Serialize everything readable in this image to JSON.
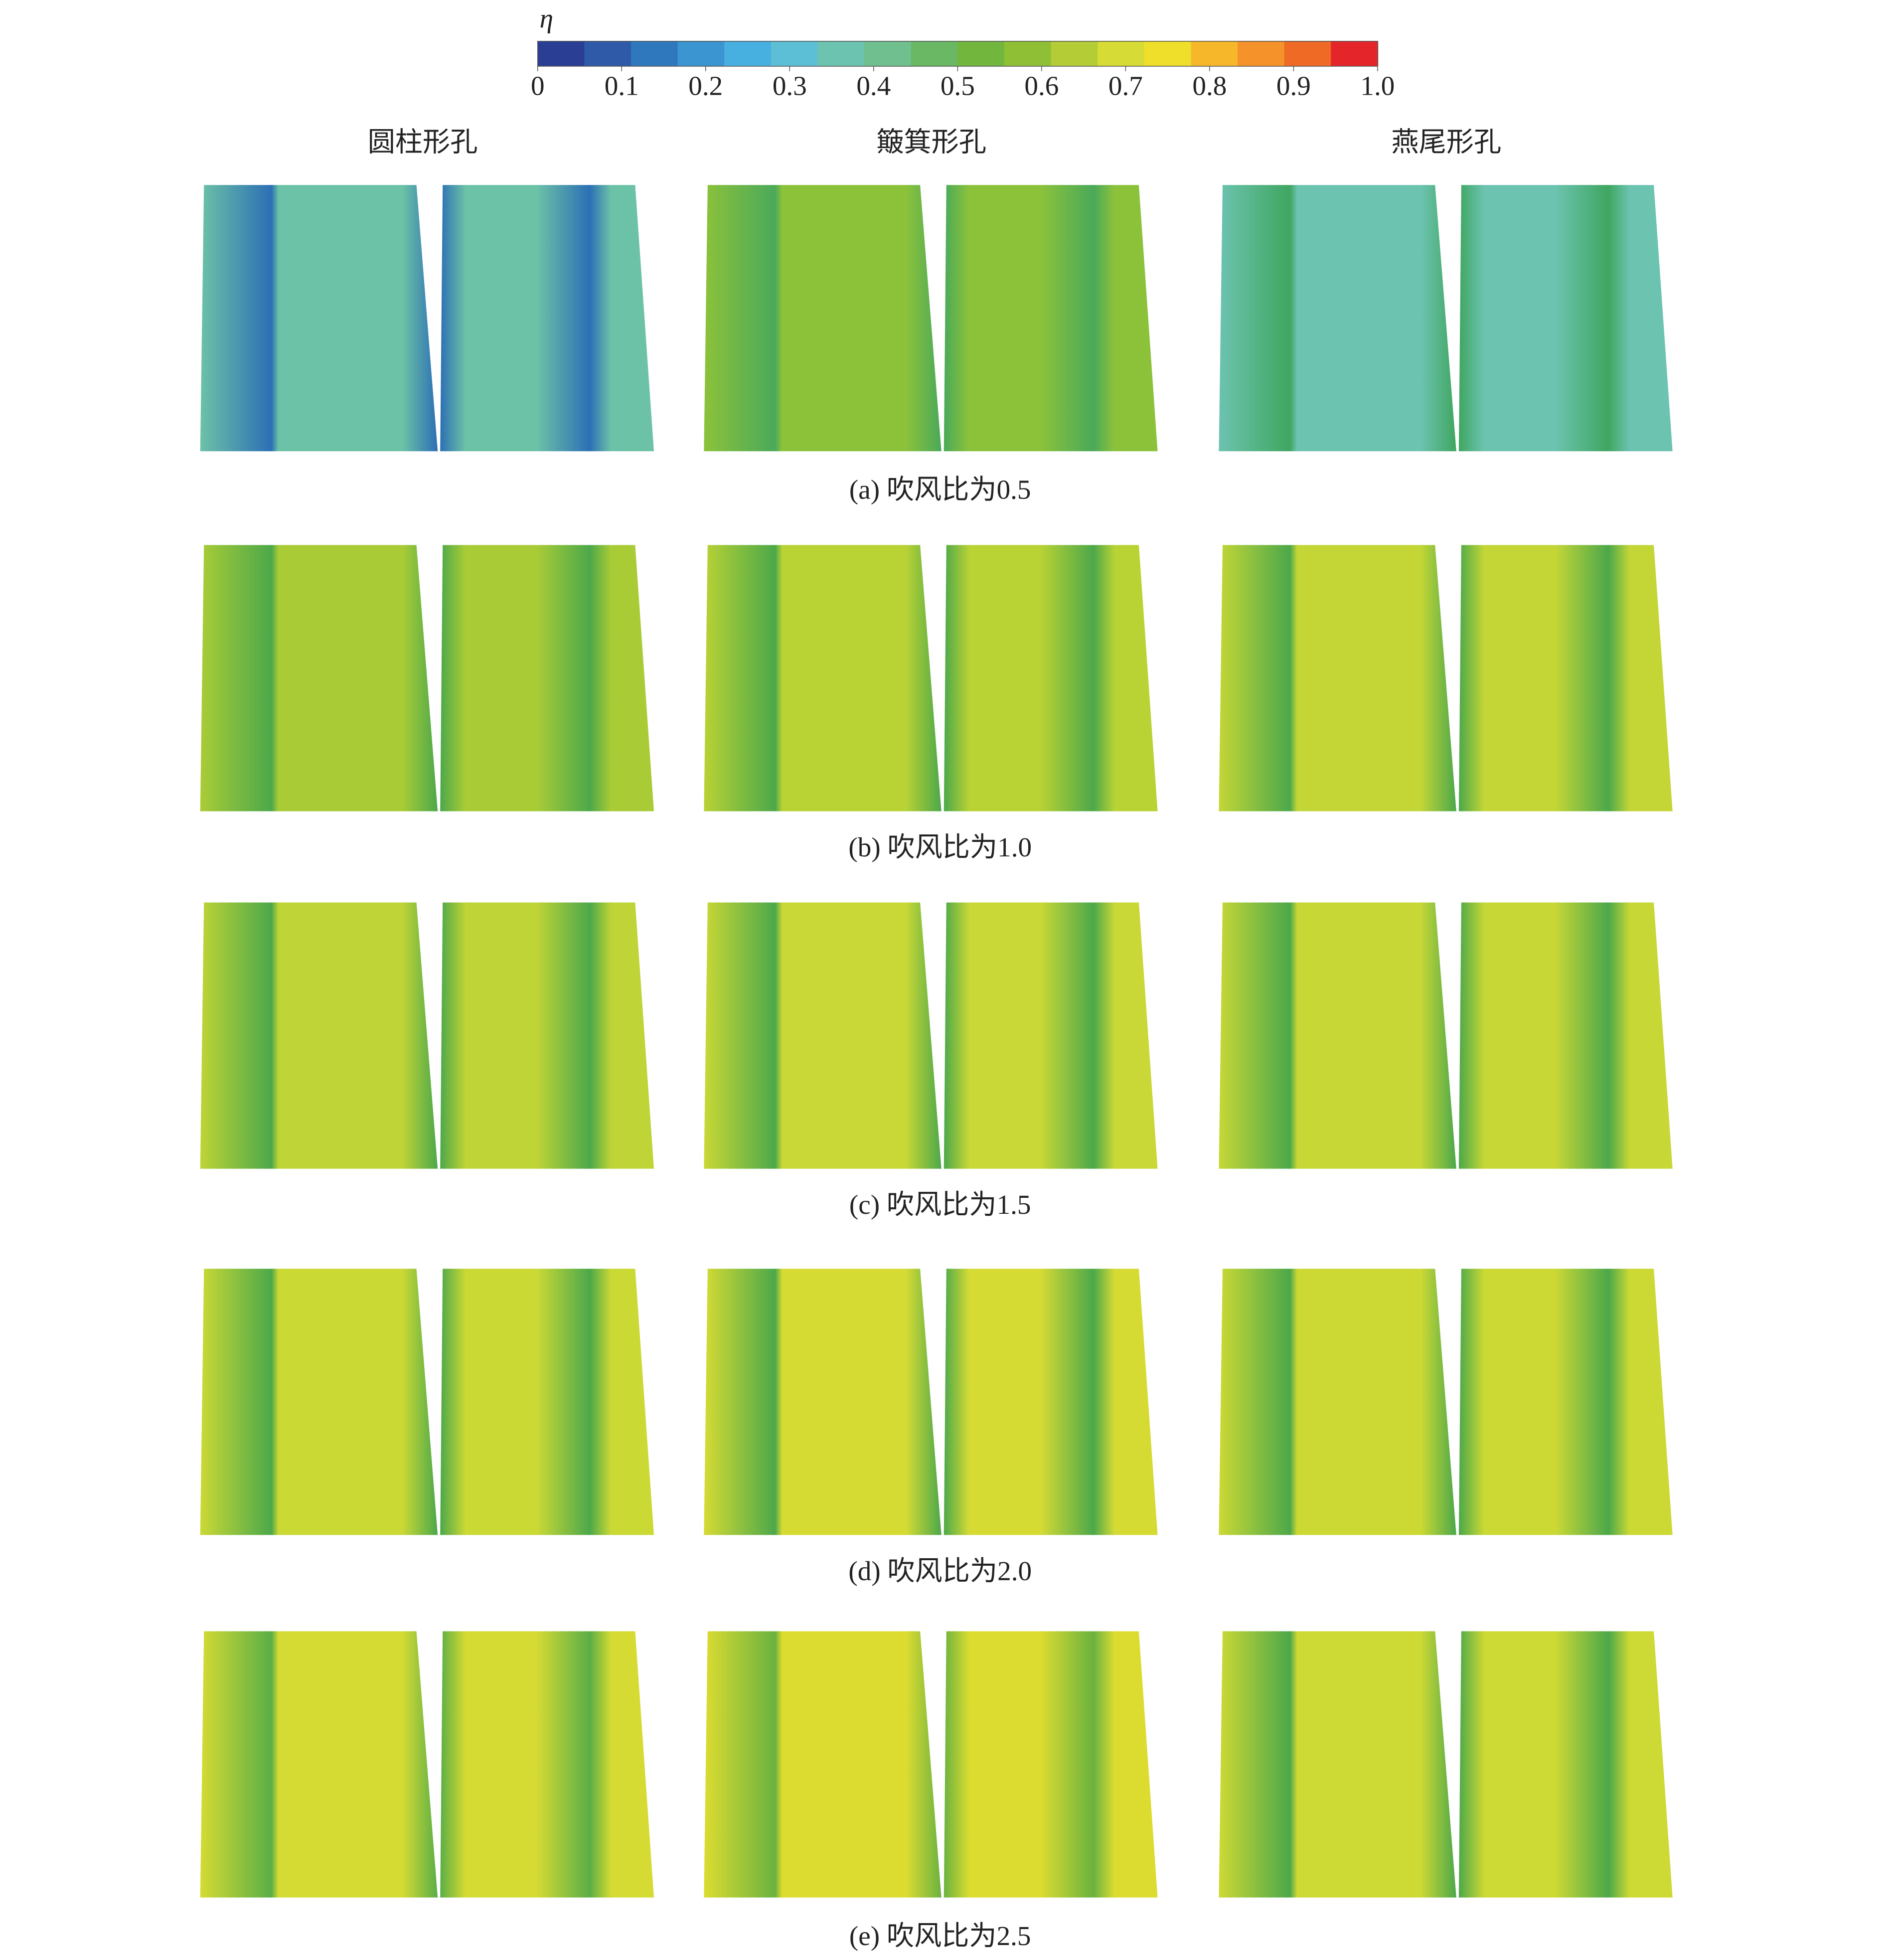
{
  "figure": {
    "colorbar": {
      "label": "η",
      "lim": [
        0,
        1
      ],
      "ticks": [
        0,
        0.1,
        0.2,
        0.3,
        0.4,
        0.5,
        0.6,
        0.7,
        0.8,
        0.9,
        {
          "value": 1,
          "label": "1.0"
        }
      ],
      "colors": [
        "#2a3f94",
        "#2f5aa8",
        "#2f78bd",
        "#3a95d1",
        "#48b0e0",
        "#5dbfd6",
        "#6cc3b0",
        "#6fbf8f",
        "#6ab863",
        "#72b63e",
        "#8fbf34",
        "#b4cc36",
        "#d6dc35",
        "#f0df2a",
        "#f6b82a",
        "#f5922a",
        "#ef6a25",
        "#e4262a"
      ]
    },
    "columns": [
      "圆柱形孔",
      "簸箕形孔",
      "燕尾形孔"
    ],
    "rows": [
      {
        "caption": "(a) 吹风比为0.5",
        "colors": [
          [
            "#2c6fb5",
            "#6cc2a6"
          ],
          [
            "#4aa95a",
            "#8cc23a"
          ],
          [
            "#3fa660",
            "#6cc3b0"
          ]
        ]
      },
      {
        "caption": "(b) 吹风比为1.0",
        "colors": [
          [
            "#4ca84a",
            "#a9cc36"
          ],
          [
            "#4ca84a",
            "#b9d234"
          ],
          [
            "#4ca84a",
            "#c3d636"
          ]
        ]
      },
      {
        "caption": "(c) 吹风比为1.5",
        "colors": [
          [
            "#4ca84a",
            "#bfd436"
          ],
          [
            "#4ca84a",
            "#c9d836"
          ],
          [
            "#4ca84a",
            "#c6d736"
          ]
        ]
      },
      {
        "caption": "(d) 吹风比为2.0",
        "colors": [
          [
            "#4ca84a",
            "#cbd935"
          ],
          [
            "#4ca84a",
            "#d6db34"
          ],
          [
            "#4ca84a",
            "#ccd934"
          ]
        ]
      },
      {
        "caption": "(e) 吹风比为2.5",
        "colors": [
          [
            "#5aae46",
            "#d5db33"
          ],
          [
            "#6ab240",
            "#dcdc30"
          ],
          [
            "#4ca84a",
            "#cdd934"
          ]
        ]
      }
    ]
  }
}
